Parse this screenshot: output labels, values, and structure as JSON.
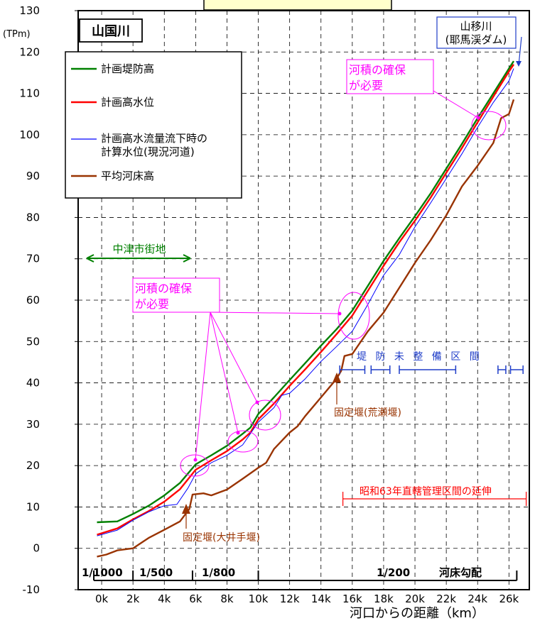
{
  "chart_data": {
    "type": "line",
    "title": "山国川",
    "ylabel": "(TPm)",
    "xlabel": "河口からの距離（km）",
    "ylim": [
      -10,
      130
    ],
    "xlim": [
      -1.5,
      27.3
    ],
    "y_ticks": [
      "130",
      "120",
      "110",
      "100",
      "90",
      "80",
      "70",
      "60",
      "50",
      "40",
      "30",
      "20",
      "10",
      "0",
      "-10"
    ],
    "x_ticks": [
      {
        "v": 0,
        "label": "0k"
      },
      {
        "v": 2,
        "label": "2k"
      },
      {
        "v": 4,
        "label": "4k"
      },
      {
        "v": 6,
        "label": "6k"
      },
      {
        "v": 8,
        "label": "8k"
      },
      {
        "v": 10,
        "label": "10k"
      },
      {
        "v": 12,
        "label": "12k"
      },
      {
        "v": 14,
        "label": "14k"
      },
      {
        "v": 16,
        "label": "16k"
      },
      {
        "v": 18,
        "label": "18k"
      },
      {
        "v": 20,
        "label": "20k"
      },
      {
        "v": 22,
        "label": "22k"
      },
      {
        "v": 24,
        "label": "24k"
      },
      {
        "v": 26,
        "label": "26k"
      }
    ],
    "grid": true,
    "legend": {
      "position": "upper-left"
    },
    "series": [
      {
        "name": "計画堤防高",
        "color": "#008000",
        "points": [
          [
            -0.3,
            6.3
          ],
          [
            1,
            6.5
          ],
          [
            2,
            8.3
          ],
          [
            3,
            10.3
          ],
          [
            4,
            12.8
          ],
          [
            5,
            15.8
          ],
          [
            6,
            20.3
          ],
          [
            7,
            22.5
          ],
          [
            8,
            24.8
          ],
          [
            9,
            27.7
          ],
          [
            9.5,
            29.2
          ],
          [
            10,
            32.5
          ],
          [
            11,
            36.5
          ],
          [
            12,
            40.7
          ],
          [
            13,
            44.8
          ],
          [
            14,
            49
          ],
          [
            15,
            53
          ],
          [
            16,
            57.5
          ],
          [
            17,
            63.5
          ],
          [
            18,
            69.5
          ],
          [
            19,
            75
          ],
          [
            20,
            80.3
          ],
          [
            21,
            85.8
          ],
          [
            22,
            91.8
          ],
          [
            23,
            97.8
          ],
          [
            24,
            104
          ],
          [
            25,
            110
          ],
          [
            26,
            116
          ],
          [
            26.3,
            117.8
          ]
        ]
      },
      {
        "name": "計画高水位",
        "color": "#ff0000",
        "points": [
          [
            -0.3,
            3.3
          ],
          [
            1,
            4.8
          ],
          [
            2,
            7
          ],
          [
            3,
            9
          ],
          [
            4,
            11.3
          ],
          [
            5,
            14.3
          ],
          [
            6,
            19
          ],
          [
            7,
            21.3
          ],
          [
            8,
            23.5
          ],
          [
            9,
            26.3
          ],
          [
            9.5,
            28
          ],
          [
            10,
            31.2
          ],
          [
            11,
            35
          ],
          [
            12,
            39.3
          ],
          [
            13,
            43.3
          ],
          [
            14,
            47.5
          ],
          [
            15,
            51.8
          ],
          [
            16,
            56.3
          ],
          [
            17,
            62.3
          ],
          [
            18,
            68.3
          ],
          [
            19,
            74
          ],
          [
            20,
            79.2
          ],
          [
            21,
            84.8
          ],
          [
            22,
            90.8
          ],
          [
            23,
            96.8
          ],
          [
            24,
            103
          ],
          [
            25,
            109.2
          ],
          [
            26,
            115.3
          ],
          [
            26.3,
            117
          ]
        ]
      },
      {
        "name": "計画高水流量流下時の計算水位(現況河道)",
        "color": "#0000ff",
        "points": [
          [
            -0.3,
            3
          ],
          [
            1,
            4.4
          ],
          [
            2,
            6.8
          ],
          [
            3,
            8.8
          ],
          [
            4,
            10.3
          ],
          [
            4.8,
            10.6
          ],
          [
            5.5,
            14.5
          ],
          [
            6,
            18
          ],
          [
            7,
            20.7
          ],
          [
            8,
            22.5
          ],
          [
            9,
            25
          ],
          [
            10,
            30.5
          ],
          [
            11,
            34
          ],
          [
            11.5,
            37
          ],
          [
            12,
            37.5
          ],
          [
            13,
            41
          ],
          [
            14,
            45.2
          ],
          [
            15,
            48.8
          ],
          [
            16,
            52.5
          ],
          [
            17,
            59
          ],
          [
            18,
            66
          ],
          [
            19,
            71
          ],
          [
            20,
            77.7
          ],
          [
            21,
            83.5
          ],
          [
            22,
            89.4
          ],
          [
            23,
            95.4
          ],
          [
            24,
            101.8
          ],
          [
            25,
            107.8
          ],
          [
            26,
            113
          ],
          [
            26.3,
            116
          ]
        ]
      },
      {
        "name": "平均河床高",
        "color": "#993300",
        "points": [
          [
            -0.3,
            -2
          ],
          [
            0.3,
            -1.5
          ],
          [
            1,
            -0.5
          ],
          [
            2,
            0
          ],
          [
            3,
            2.5
          ],
          [
            4,
            4.5
          ],
          [
            5,
            6.5
          ],
          [
            5.6,
            9.5
          ],
          [
            5.8,
            13
          ],
          [
            6.5,
            13.3
          ],
          [
            7,
            12.8
          ],
          [
            7.5,
            13.5
          ],
          [
            8,
            14.2
          ],
          [
            9,
            16.8
          ],
          [
            10,
            19.5
          ],
          [
            10.5,
            20.7
          ],
          [
            11,
            24
          ],
          [
            11.5,
            26
          ],
          [
            12,
            28
          ],
          [
            12.5,
            29.5
          ],
          [
            13,
            32
          ],
          [
            14,
            36.5
          ],
          [
            15,
            41
          ],
          [
            15.3,
            43
          ],
          [
            15.5,
            46.5
          ],
          [
            16,
            47
          ],
          [
            17,
            52.5
          ],
          [
            18,
            57
          ],
          [
            19,
            63
          ],
          [
            20,
            69
          ],
          [
            21,
            74.5
          ],
          [
            22,
            80.5
          ],
          [
            23,
            87.5
          ],
          [
            24,
            92.5
          ],
          [
            25,
            98
          ],
          [
            25.5,
            104
          ],
          [
            26,
            105
          ],
          [
            26.3,
            108.5
          ]
        ]
      }
    ],
    "annotations": {
      "tributary": "山移川\n(耶馬渓ダム)",
      "city_area": "中津市街地",
      "capacity_need": "河積の確保\nが必要",
      "weir_oi": "固定堰(大井手堰)",
      "weir_arase": "固定堰(荒瀬堰)",
      "levee_unbuilt": "堤 防 未 整 備 区 間",
      "extension": "昭和63年直轄管理区間の延伸",
      "gradient_label": "河床勾配",
      "gradients": [
        {
          "from": -0.5,
          "to": 2,
          "label": "1/1000"
        },
        {
          "from": 2,
          "to": 5.8,
          "label": "1/500"
        },
        {
          "from": 5.8,
          "to": 10,
          "label": "1/800"
        },
        {
          "from": 10,
          "to": 26.5,
          "label": "1/200"
        }
      ],
      "unbuilt_segments": [
        [
          15.2,
          16.8
        ],
        [
          17.2,
          18.4
        ],
        [
          19,
          22.6
        ],
        [
          25.3,
          25.8
        ],
        [
          26.1,
          26.9
        ]
      ]
    }
  }
}
